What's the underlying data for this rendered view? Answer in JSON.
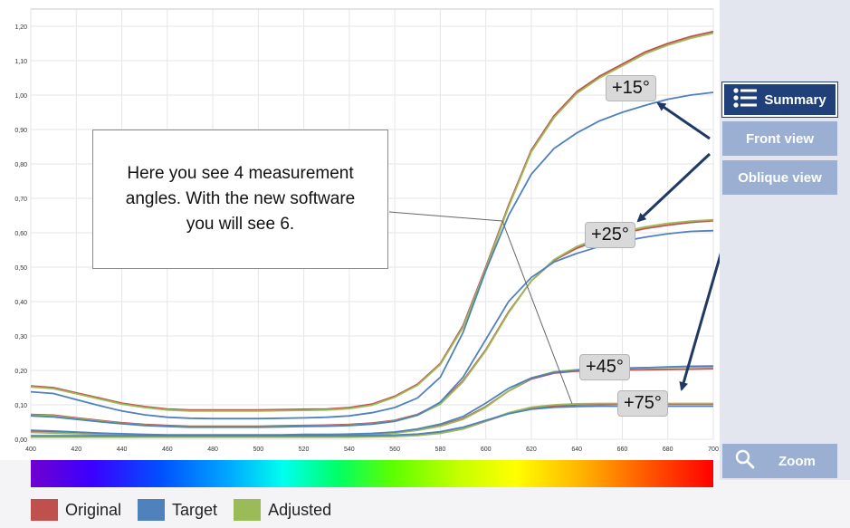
{
  "chart_data": {
    "type": "line",
    "x": [
      400,
      410,
      420,
      430,
      440,
      450,
      460,
      470,
      480,
      490,
      500,
      510,
      520,
      530,
      540,
      550,
      560,
      570,
      580,
      590,
      600,
      610,
      620,
      630,
      640,
      650,
      660,
      670,
      680,
      690,
      700
    ],
    "xlim": [
      400,
      700
    ],
    "ylim": [
      0,
      1.25
    ],
    "x_ticks": [
      "400",
      "420",
      "440",
      "460",
      "480",
      "500",
      "520",
      "540",
      "560",
      "580",
      "600",
      "620",
      "640",
      "660",
      "680",
      "700"
    ],
    "y_ticks": [
      "0,00",
      "0,10",
      "0,20",
      "0,30",
      "0,40",
      "0,50",
      "0,60",
      "0,70",
      "0,80",
      "0,90",
      "1,00",
      "1,10",
      "1,20"
    ],
    "grid": true,
    "series": [
      {
        "name": "Original",
        "angle": "+15°",
        "color": "#c0504d",
        "values": [
          0.155,
          0.15,
          0.135,
          0.12,
          0.105,
          0.095,
          0.088,
          0.085,
          0.085,
          0.085,
          0.085,
          0.086,
          0.087,
          0.088,
          0.092,
          0.102,
          0.125,
          0.16,
          0.22,
          0.33,
          0.5,
          0.68,
          0.84,
          0.94,
          1.01,
          1.055,
          1.09,
          1.125,
          1.15,
          1.17,
          1.185
        ]
      },
      {
        "name": "Adjusted",
        "angle": "+15°",
        "color": "#9bbb59",
        "values": [
          0.152,
          0.147,
          0.132,
          0.117,
          0.102,
          0.092,
          0.085,
          0.082,
          0.082,
          0.082,
          0.082,
          0.083,
          0.084,
          0.085,
          0.089,
          0.099,
          0.122,
          0.157,
          0.217,
          0.325,
          0.495,
          0.675,
          0.835,
          0.935,
          1.005,
          1.05,
          1.085,
          1.12,
          1.145,
          1.165,
          1.18
        ]
      },
      {
        "name": "Target",
        "angle": "+15°",
        "color": "#4f81bd",
        "values": [
          0.138,
          0.133,
          0.115,
          0.098,
          0.082,
          0.071,
          0.064,
          0.061,
          0.06,
          0.06,
          0.06,
          0.061,
          0.062,
          0.064,
          0.068,
          0.077,
          0.092,
          0.12,
          0.18,
          0.31,
          0.49,
          0.65,
          0.77,
          0.845,
          0.89,
          0.925,
          0.95,
          0.97,
          0.988,
          1.0,
          1.008
        ]
      },
      {
        "name": "Original",
        "angle": "+25°",
        "color": "#c0504d",
        "values": [
          0.072,
          0.07,
          0.062,
          0.055,
          0.048,
          0.043,
          0.04,
          0.038,
          0.038,
          0.038,
          0.038,
          0.039,
          0.04,
          0.041,
          0.043,
          0.047,
          0.055,
          0.072,
          0.105,
          0.17,
          0.26,
          0.37,
          0.46,
          0.52,
          0.555,
          0.58,
          0.598,
          0.612,
          0.622,
          0.63,
          0.635
        ]
      },
      {
        "name": "Adjusted",
        "angle": "+25°",
        "color": "#9bbb59",
        "values": [
          0.07,
          0.068,
          0.06,
          0.053,
          0.046,
          0.041,
          0.038,
          0.036,
          0.036,
          0.036,
          0.036,
          0.037,
          0.038,
          0.039,
          0.041,
          0.045,
          0.053,
          0.07,
          0.102,
          0.167,
          0.257,
          0.367,
          0.46,
          0.522,
          0.56,
          0.585,
          0.603,
          0.617,
          0.627,
          0.634,
          0.638
        ]
      },
      {
        "name": "Target",
        "angle": "+25°",
        "color": "#4f81bd",
        "values": [
          0.068,
          0.065,
          0.058,
          0.051,
          0.045,
          0.04,
          0.037,
          0.035,
          0.035,
          0.035,
          0.035,
          0.036,
          0.037,
          0.038,
          0.04,
          0.044,
          0.052,
          0.07,
          0.108,
          0.18,
          0.29,
          0.4,
          0.47,
          0.515,
          0.54,
          0.56,
          0.575,
          0.587,
          0.597,
          0.604,
          0.606
        ]
      },
      {
        "name": "Original",
        "angle": "+45°",
        "color": "#c0504d",
        "values": [
          0.022,
          0.02,
          0.018,
          0.016,
          0.014,
          0.013,
          0.012,
          0.012,
          0.012,
          0.012,
          0.012,
          0.012,
          0.013,
          0.013,
          0.014,
          0.016,
          0.02,
          0.028,
          0.04,
          0.06,
          0.095,
          0.14,
          0.175,
          0.192,
          0.198,
          0.2,
          0.201,
          0.202,
          0.203,
          0.204,
          0.205
        ]
      },
      {
        "name": "Adjusted",
        "angle": "+45°",
        "color": "#9bbb59",
        "values": [
          0.02,
          0.018,
          0.016,
          0.014,
          0.012,
          0.011,
          0.01,
          0.01,
          0.01,
          0.01,
          0.01,
          0.01,
          0.011,
          0.011,
          0.012,
          0.014,
          0.018,
          0.026,
          0.038,
          0.058,
          0.093,
          0.14,
          0.178,
          0.196,
          0.202,
          0.205,
          0.207,
          0.208,
          0.209,
          0.21,
          0.21
        ]
      },
      {
        "name": "Target",
        "angle": "+45°",
        "color": "#4f81bd",
        "values": [
          0.026,
          0.024,
          0.021,
          0.018,
          0.016,
          0.014,
          0.013,
          0.013,
          0.013,
          0.013,
          0.013,
          0.013,
          0.014,
          0.014,
          0.015,
          0.017,
          0.021,
          0.03,
          0.044,
          0.066,
          0.105,
          0.148,
          0.178,
          0.194,
          0.2,
          0.203,
          0.206,
          0.208,
          0.21,
          0.212,
          0.213
        ]
      },
      {
        "name": "Original",
        "angle": "+75°",
        "color": "#c0504d",
        "values": [
          0.008,
          0.008,
          0.008,
          0.008,
          0.008,
          0.008,
          0.008,
          0.008,
          0.008,
          0.008,
          0.008,
          0.008,
          0.008,
          0.008,
          0.008,
          0.009,
          0.01,
          0.012,
          0.018,
          0.03,
          0.052,
          0.075,
          0.09,
          0.097,
          0.1,
          0.101,
          0.102,
          0.102,
          0.102,
          0.102,
          0.102
        ]
      },
      {
        "name": "Adjusted",
        "angle": "+75°",
        "color": "#9bbb59",
        "values": [
          0.006,
          0.006,
          0.006,
          0.006,
          0.006,
          0.006,
          0.006,
          0.006,
          0.006,
          0.006,
          0.006,
          0.006,
          0.006,
          0.006,
          0.006,
          0.007,
          0.008,
          0.011,
          0.017,
          0.03,
          0.053,
          0.077,
          0.093,
          0.1,
          0.103,
          0.104,
          0.104,
          0.104,
          0.104,
          0.104,
          0.104
        ]
      },
      {
        "name": "Target",
        "angle": "+75°",
        "color": "#4f81bd",
        "values": [
          0.01,
          0.01,
          0.01,
          0.01,
          0.01,
          0.01,
          0.01,
          0.01,
          0.01,
          0.01,
          0.01,
          0.01,
          0.01,
          0.01,
          0.01,
          0.011,
          0.012,
          0.015,
          0.022,
          0.035,
          0.055,
          0.074,
          0.087,
          0.093,
          0.095,
          0.096,
          0.096,
          0.096,
          0.096,
          0.096,
          0.096
        ]
      }
    ]
  },
  "angle_labels": [
    "+15°",
    "+25°",
    "+45°",
    "+75°"
  ],
  "callout": "Here you see 4 measurement angles. With the new software you will see 6.",
  "side_panel": {
    "summary_label": "Summary",
    "front_view_label": "Front view",
    "oblique_view_label": "Oblique view",
    "zoom_label": "Zoom"
  },
  "legend": [
    {
      "label": "Original",
      "color": "#c0504d"
    },
    {
      "label": "Target",
      "color": "#4f81bd"
    },
    {
      "label": "Adjusted",
      "color": "#9bbb59"
    }
  ],
  "colors": {
    "arrow": "#1f3864",
    "accent": "#20407a"
  }
}
